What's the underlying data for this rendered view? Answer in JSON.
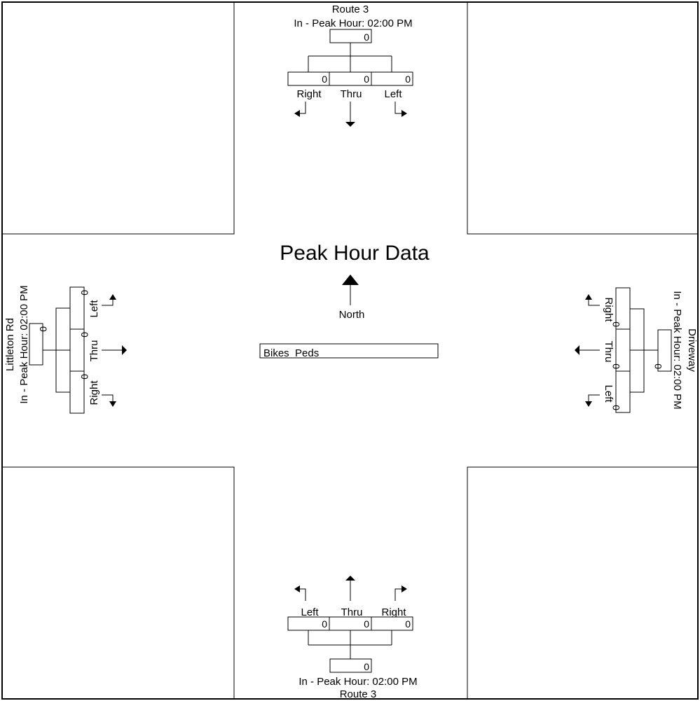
{
  "diagram": {
    "title": "Peak Hour Data",
    "north_label": "North",
    "bikes_peds_label": "Bikes  Peds"
  },
  "north": {
    "street": "Route 3",
    "peak": "In - Peak Hour: 02:00 PM",
    "total": "0",
    "right_label": "Right",
    "right_value": "0",
    "thru_label": "Thru",
    "thru_value": "0",
    "left_label": "Left",
    "left_value": "0"
  },
  "south": {
    "street": "Route 3",
    "peak": "In - Peak Hour: 02:00 PM",
    "total": "0",
    "left_label": "Left",
    "left_value": "0",
    "thru_label": "Thru",
    "thru_value": "0",
    "right_label": "Right",
    "right_value": "0"
  },
  "west": {
    "street": "Littleton Rd",
    "peak": "In - Peak Hour: 02:00 PM",
    "total": "0",
    "left_label": "Left",
    "left_value": "0",
    "thru_label": "Thru",
    "thru_value": "0",
    "right_label": "Right",
    "right_value": "0"
  },
  "east": {
    "street": "Driveway",
    "peak": "In - Peak Hour: 02:00 PM",
    "total": "0",
    "right_label": "Right",
    "right_value": "0",
    "thru_label": "Thru",
    "thru_value": "0",
    "left_label": "Left",
    "left_value": "0"
  }
}
